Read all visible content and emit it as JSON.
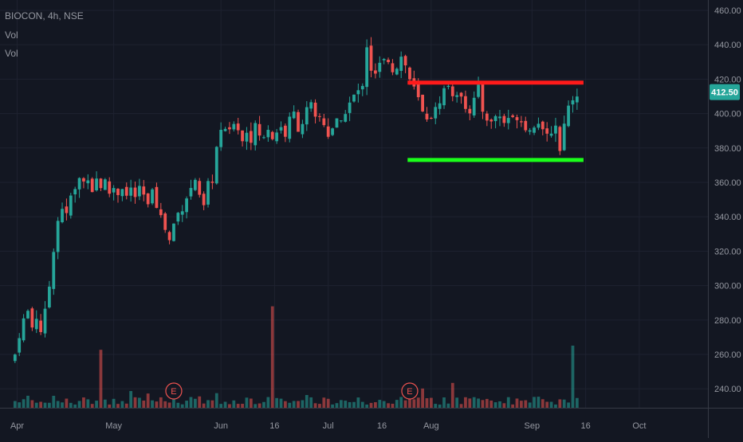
{
  "header": {
    "title": "BIOCON, 4h, NSE",
    "vol_label_1": "Vol",
    "vol_label_2": "Vol"
  },
  "colors": {
    "background": "#131722",
    "up": "#26a69a",
    "down": "#ef5350",
    "resistance": "#ff1a1a",
    "support": "#1aff1a",
    "badge": "#26a69a",
    "grid": "#1e2230",
    "axis_text": "#9598a1"
  },
  "chart_data": {
    "type": "candlestick",
    "symbol": "BIOCON",
    "interval": "4h",
    "exchange": "NSE",
    "last_price": 412.5,
    "last_price_label": "412.50",
    "y_ticks": [
      "240.00",
      "260.00",
      "280.00",
      "300.00",
      "320.00",
      "340.00",
      "360.00",
      "380.00",
      "400.00",
      "420.00",
      "440.00",
      "460.00"
    ],
    "ylim": [
      229,
      466
    ],
    "x_ticks": [
      "Apr",
      "May",
      "Jun",
      "16",
      "Jul",
      "16",
      "Aug",
      "Sep",
      "16",
      "Oct"
    ],
    "x_tick_positions": [
      0.5,
      23,
      48,
      60.5,
      73,
      85.5,
      97,
      120.5,
      133,
      145.5
    ],
    "xlim": [
      -3.5,
      161.5
    ],
    "close_path": [
      [
        0,
        260
      ],
      [
        1,
        272
      ],
      [
        2,
        280
      ],
      [
        3,
        285
      ],
      [
        4,
        276
      ],
      [
        5,
        282
      ],
      [
        6,
        274
      ],
      [
        7,
        284
      ],
      [
        8,
        300
      ],
      [
        9,
        322
      ],
      [
        10,
        338
      ],
      [
        11,
        346
      ],
      [
        12,
        340
      ],
      [
        13,
        352
      ],
      [
        14,
        355
      ],
      [
        15,
        362
      ],
      [
        16,
        360
      ],
      [
        17,
        364
      ],
      [
        18,
        356
      ],
      [
        19,
        362
      ],
      [
        20,
        358
      ],
      [
        21,
        360
      ],
      [
        22,
        354
      ],
      [
        23,
        357
      ],
      [
        24,
        354
      ],
      [
        25,
        358
      ],
      [
        26,
        352
      ],
      [
        27,
        356
      ],
      [
        28,
        352
      ],
      [
        29,
        355
      ],
      [
        30,
        352
      ],
      [
        31,
        345
      ],
      [
        32,
        358
      ],
      [
        33,
        348
      ],
      [
        34,
        340
      ],
      [
        35,
        333
      ],
      [
        36,
        326
      ],
      [
        37,
        336
      ],
      [
        38,
        342
      ],
      [
        39,
        346
      ],
      [
        40,
        352
      ],
      [
        41,
        356
      ],
      [
        42,
        362
      ],
      [
        43,
        350
      ],
      [
        44,
        345
      ],
      [
        45,
        358
      ],
      [
        46,
        362
      ],
      [
        47,
        380
      ],
      [
        48,
        388
      ],
      [
        49,
        392
      ],
      [
        50,
        388
      ],
      [
        51,
        396
      ],
      [
        52,
        392
      ],
      [
        53,
        384
      ],
      [
        54,
        390
      ],
      [
        55,
        386
      ],
      [
        56,
        392
      ],
      [
        57,
        388
      ],
      [
        58,
        385
      ],
      [
        59,
        392
      ],
      [
        60,
        386
      ],
      [
        61,
        390
      ],
      [
        62,
        392
      ],
      [
        63,
        388
      ],
      [
        64,
        396
      ],
      [
        65,
        400
      ],
      [
        66,
        392
      ],
      [
        67,
        395
      ],
      [
        68,
        402
      ],
      [
        69,
        404
      ],
      [
        70,
        396
      ],
      [
        71,
        398
      ],
      [
        72,
        394
      ],
      [
        73,
        388
      ],
      [
        74,
        392
      ],
      [
        75,
        395
      ],
      [
        76,
        393
      ],
      [
        77,
        402
      ],
      [
        78,
        406
      ],
      [
        79,
        410
      ],
      [
        80,
        412
      ],
      [
        81,
        418
      ],
      [
        82,
        440
      ],
      [
        83,
        426
      ],
      [
        84,
        422
      ],
      [
        85,
        428
      ],
      [
        86,
        430
      ],
      [
        87,
        432
      ],
      [
        88,
        426
      ],
      [
        89,
        428
      ],
      [
        90,
        433
      ],
      [
        91,
        428
      ],
      [
        92,
        420
      ],
      [
        93,
        414
      ],
      [
        94,
        408
      ],
      [
        95,
        400
      ],
      [
        96,
        398
      ],
      [
        97,
        399
      ],
      [
        98,
        402
      ],
      [
        99,
        408
      ],
      [
        100,
        414
      ],
      [
        101,
        416
      ],
      [
        102,
        412
      ],
      [
        103,
        408
      ],
      [
        104,
        412
      ],
      [
        105,
        405
      ],
      [
        106,
        402
      ],
      [
        107,
        408
      ],
      [
        108,
        414
      ],
      [
        109,
        402
      ],
      [
        110,
        398
      ],
      [
        111,
        394
      ],
      [
        112,
        399
      ],
      [
        113,
        398
      ],
      [
        114,
        395
      ],
      [
        115,
        398
      ],
      [
        116,
        396
      ],
      [
        117,
        399
      ],
      [
        118,
        396
      ],
      [
        119,
        393
      ],
      [
        120,
        390
      ],
      [
        121,
        394
      ],
      [
        122,
        396
      ],
      [
        123,
        388
      ],
      [
        124,
        386
      ],
      [
        125,
        390
      ],
      [
        126,
        394
      ],
      [
        127,
        378
      ],
      [
        128,
        396
      ],
      [
        129,
        404
      ],
      [
        130,
        410
      ],
      [
        131,
        412.5
      ]
    ],
    "volume_spikes": [
      {
        "x": 60,
        "value": 49
      },
      {
        "x": 130,
        "value": 30
      },
      {
        "x": 20,
        "value": 28
      },
      {
        "x": 102,
        "value": 12
      }
    ],
    "resistance_line": {
      "y": 418,
      "x_start": 91.5,
      "x_end": 132.5
    },
    "support_line": {
      "y": 373,
      "x_start": 91.5,
      "x_end": 132.5
    },
    "earnings_markers": [
      {
        "x": 37,
        "label": "E"
      },
      {
        "x": 92,
        "label": "E"
      }
    ],
    "grid": true
  }
}
